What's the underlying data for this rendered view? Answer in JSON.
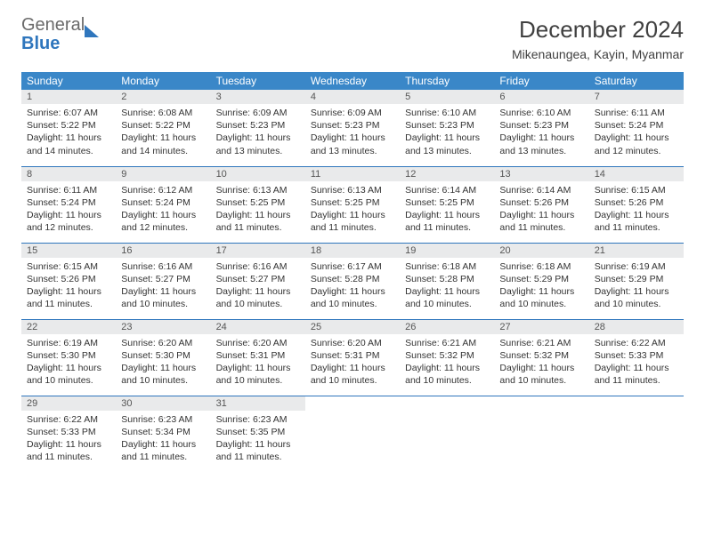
{
  "brand": {
    "part1": "General",
    "part2": "Blue"
  },
  "title": "December 2024",
  "location": "Mikenaungea, Kayin, Myanmar",
  "colors": {
    "header_bg": "#3a87c8",
    "header_text": "#ffffff",
    "border": "#2f76bd",
    "daynum_bg": "#e9eaeb",
    "brand_gray": "#6a6a6a",
    "brand_blue": "#2f76bd"
  },
  "weekdays": [
    "Sunday",
    "Monday",
    "Tuesday",
    "Wednesday",
    "Thursday",
    "Friday",
    "Saturday"
  ],
  "labels": {
    "sunrise": "Sunrise:",
    "sunset": "Sunset:",
    "daylight": "Daylight:"
  },
  "days": [
    {
      "n": 1,
      "sr": "6:07 AM",
      "ss": "5:22 PM",
      "dl": "11 hours and 14 minutes."
    },
    {
      "n": 2,
      "sr": "6:08 AM",
      "ss": "5:22 PM",
      "dl": "11 hours and 14 minutes."
    },
    {
      "n": 3,
      "sr": "6:09 AM",
      "ss": "5:23 PM",
      "dl": "11 hours and 13 minutes."
    },
    {
      "n": 4,
      "sr": "6:09 AM",
      "ss": "5:23 PM",
      "dl": "11 hours and 13 minutes."
    },
    {
      "n": 5,
      "sr": "6:10 AM",
      "ss": "5:23 PM",
      "dl": "11 hours and 13 minutes."
    },
    {
      "n": 6,
      "sr": "6:10 AM",
      "ss": "5:23 PM",
      "dl": "11 hours and 13 minutes."
    },
    {
      "n": 7,
      "sr": "6:11 AM",
      "ss": "5:24 PM",
      "dl": "11 hours and 12 minutes."
    },
    {
      "n": 8,
      "sr": "6:11 AM",
      "ss": "5:24 PM",
      "dl": "11 hours and 12 minutes."
    },
    {
      "n": 9,
      "sr": "6:12 AM",
      "ss": "5:24 PM",
      "dl": "11 hours and 12 minutes."
    },
    {
      "n": 10,
      "sr": "6:13 AM",
      "ss": "5:25 PM",
      "dl": "11 hours and 11 minutes."
    },
    {
      "n": 11,
      "sr": "6:13 AM",
      "ss": "5:25 PM",
      "dl": "11 hours and 11 minutes."
    },
    {
      "n": 12,
      "sr": "6:14 AM",
      "ss": "5:25 PM",
      "dl": "11 hours and 11 minutes."
    },
    {
      "n": 13,
      "sr": "6:14 AM",
      "ss": "5:26 PM",
      "dl": "11 hours and 11 minutes."
    },
    {
      "n": 14,
      "sr": "6:15 AM",
      "ss": "5:26 PM",
      "dl": "11 hours and 11 minutes."
    },
    {
      "n": 15,
      "sr": "6:15 AM",
      "ss": "5:26 PM",
      "dl": "11 hours and 11 minutes."
    },
    {
      "n": 16,
      "sr": "6:16 AM",
      "ss": "5:27 PM",
      "dl": "11 hours and 10 minutes."
    },
    {
      "n": 17,
      "sr": "6:16 AM",
      "ss": "5:27 PM",
      "dl": "11 hours and 10 minutes."
    },
    {
      "n": 18,
      "sr": "6:17 AM",
      "ss": "5:28 PM",
      "dl": "11 hours and 10 minutes."
    },
    {
      "n": 19,
      "sr": "6:18 AM",
      "ss": "5:28 PM",
      "dl": "11 hours and 10 minutes."
    },
    {
      "n": 20,
      "sr": "6:18 AM",
      "ss": "5:29 PM",
      "dl": "11 hours and 10 minutes."
    },
    {
      "n": 21,
      "sr": "6:19 AM",
      "ss": "5:29 PM",
      "dl": "11 hours and 10 minutes."
    },
    {
      "n": 22,
      "sr": "6:19 AM",
      "ss": "5:30 PM",
      "dl": "11 hours and 10 minutes."
    },
    {
      "n": 23,
      "sr": "6:20 AM",
      "ss": "5:30 PM",
      "dl": "11 hours and 10 minutes."
    },
    {
      "n": 24,
      "sr": "6:20 AM",
      "ss": "5:31 PM",
      "dl": "11 hours and 10 minutes."
    },
    {
      "n": 25,
      "sr": "6:20 AM",
      "ss": "5:31 PM",
      "dl": "11 hours and 10 minutes."
    },
    {
      "n": 26,
      "sr": "6:21 AM",
      "ss": "5:32 PM",
      "dl": "11 hours and 10 minutes."
    },
    {
      "n": 27,
      "sr": "6:21 AM",
      "ss": "5:32 PM",
      "dl": "11 hours and 10 minutes."
    },
    {
      "n": 28,
      "sr": "6:22 AM",
      "ss": "5:33 PM",
      "dl": "11 hours and 11 minutes."
    },
    {
      "n": 29,
      "sr": "6:22 AM",
      "ss": "5:33 PM",
      "dl": "11 hours and 11 minutes."
    },
    {
      "n": 30,
      "sr": "6:23 AM",
      "ss": "5:34 PM",
      "dl": "11 hours and 11 minutes."
    },
    {
      "n": 31,
      "sr": "6:23 AM",
      "ss": "5:35 PM",
      "dl": "11 hours and 11 minutes."
    }
  ],
  "grid": {
    "rows": 5,
    "cols": 7,
    "start_offset": 0
  }
}
